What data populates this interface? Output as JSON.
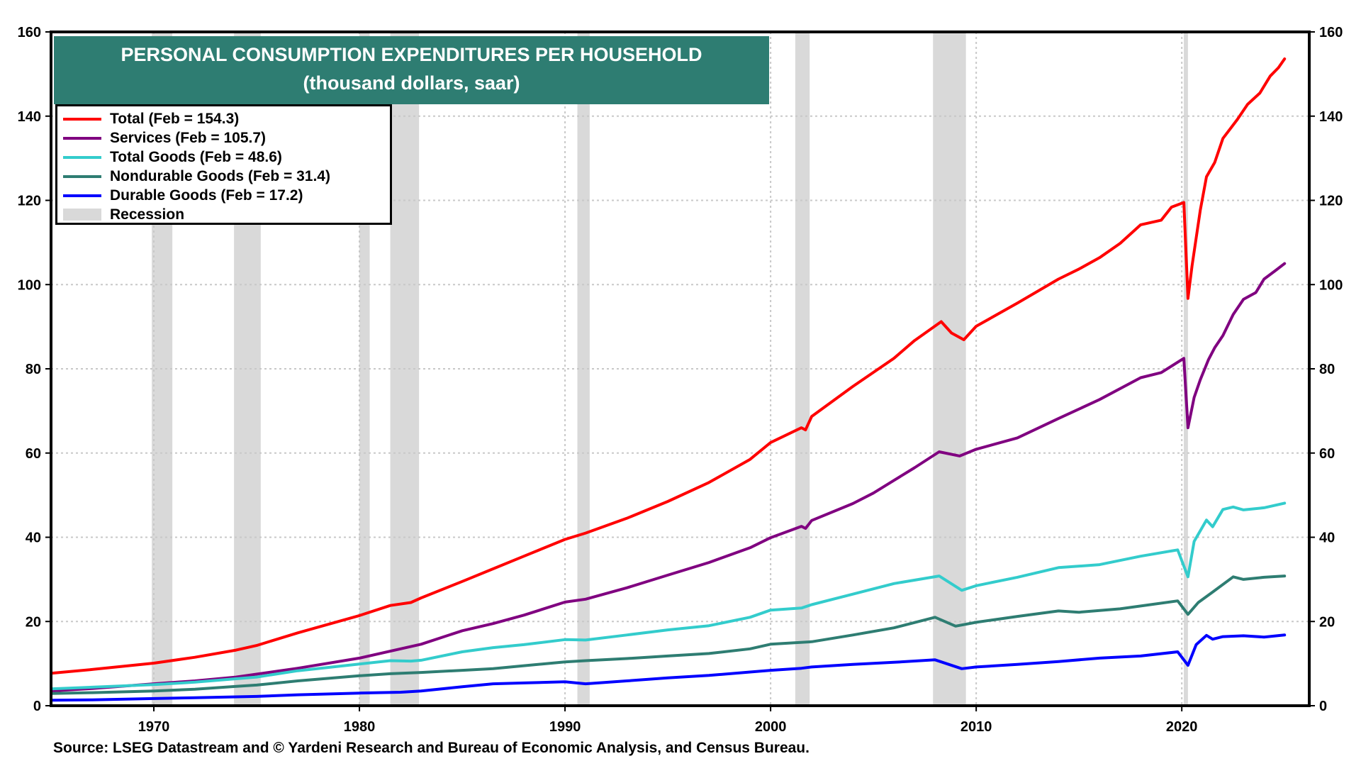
{
  "chart_data": {
    "type": "line",
    "title": "PERSONAL CONSUMPTION EXPENDITURES PER HOUSEHOLD",
    "subtitle": "(thousand dollars, saar)",
    "xlabel": "",
    "ylabel": "",
    "xlim": [
      1965.0,
      2026.2
    ],
    "ylim": [
      0,
      160
    ],
    "x_ticks": [
      1970,
      1980,
      1990,
      2000,
      2010,
      2020
    ],
    "y_ticks": [
      0,
      20,
      40,
      60,
      80,
      100,
      120,
      140,
      160
    ],
    "grid": true,
    "legend_position": "top-left",
    "recessions": [
      [
        1969.9,
        1970.9
      ],
      [
        1973.9,
        1975.2
      ],
      [
        1980.0,
        1980.5
      ],
      [
        1981.5,
        1982.9
      ],
      [
        1990.6,
        1991.2
      ],
      [
        2001.2,
        2001.9
      ],
      [
        2007.9,
        2009.5
      ],
      [
        2020.1,
        2020.3
      ]
    ],
    "series": [
      {
        "name": "Total (Feb = 154.3)",
        "color": "#ff0000",
        "points": [
          [
            1965,
            7.7
          ],
          [
            1967,
            8.6
          ],
          [
            1970,
            10.1
          ],
          [
            1972,
            11.5
          ],
          [
            1974,
            13.2
          ],
          [
            1975,
            14.3
          ],
          [
            1977,
            17.3
          ],
          [
            1980,
            21.4
          ],
          [
            1981.5,
            23.8
          ],
          [
            1982.5,
            24.5
          ],
          [
            1983,
            25.6
          ],
          [
            1985,
            29.5
          ],
          [
            1986.5,
            32.5
          ],
          [
            1988,
            35.5
          ],
          [
            1990,
            39.5
          ],
          [
            1991,
            41.0
          ],
          [
            1993,
            44.5
          ],
          [
            1995,
            48.5
          ],
          [
            1997,
            53.0
          ],
          [
            1999,
            58.5
          ],
          [
            2000,
            62.5
          ],
          [
            2001.5,
            66.0
          ],
          [
            2001.7,
            65.5
          ],
          [
            2002,
            68.7
          ],
          [
            2004,
            75.8
          ],
          [
            2006,
            82.5
          ],
          [
            2007,
            86.7
          ],
          [
            2008.3,
            91.2
          ],
          [
            2008.8,
            88.5
          ],
          [
            2009.4,
            86.9
          ],
          [
            2010,
            90.1
          ],
          [
            2012,
            95.6
          ],
          [
            2014,
            101.3
          ],
          [
            2015,
            103.7
          ],
          [
            2016,
            106.4
          ],
          [
            2017,
            109.8
          ],
          [
            2018,
            114.2
          ],
          [
            2019,
            115.3
          ],
          [
            2019.5,
            118.4
          ],
          [
            2020.1,
            119.5
          ],
          [
            2020.3,
            96.7
          ],
          [
            2020.5,
            104.5
          ],
          [
            2020.9,
            117.7
          ],
          [
            2021.2,
            125.6
          ],
          [
            2021.6,
            129.0
          ],
          [
            2022,
            134.7
          ],
          [
            2022.7,
            139.2
          ],
          [
            2023.2,
            142.8
          ],
          [
            2023.8,
            145.5
          ],
          [
            2024.3,
            149.5
          ],
          [
            2024.7,
            151.5
          ],
          [
            2025.0,
            153.6
          ]
        ]
      },
      {
        "name": "Services (Feb = 105.7)",
        "color": "#800080",
        "points": [
          [
            1965,
            3.5
          ],
          [
            1967,
            4.1
          ],
          [
            1970,
            5.2
          ],
          [
            1972,
            5.9
          ],
          [
            1974,
            6.8
          ],
          [
            1975,
            7.5
          ],
          [
            1977,
            8.9
          ],
          [
            1980,
            11.3
          ],
          [
            1982,
            13.5
          ],
          [
            1983,
            14.6
          ],
          [
            1985,
            17.8
          ],
          [
            1986.5,
            19.5
          ],
          [
            1988,
            21.5
          ],
          [
            1990,
            24.6
          ],
          [
            1991,
            25.3
          ],
          [
            1993,
            28.0
          ],
          [
            1995,
            31.0
          ],
          [
            1997,
            34.0
          ],
          [
            1999,
            37.5
          ],
          [
            2000,
            39.9
          ],
          [
            2001.5,
            42.6
          ],
          [
            2001.7,
            42.1
          ],
          [
            2002,
            44.0
          ],
          [
            2004,
            48.0
          ],
          [
            2005,
            50.5
          ],
          [
            2006,
            53.5
          ],
          [
            2007,
            56.5
          ],
          [
            2008.2,
            60.3
          ],
          [
            2009.2,
            59.3
          ],
          [
            2010,
            60.9
          ],
          [
            2012,
            63.6
          ],
          [
            2014,
            68.2
          ],
          [
            2016,
            72.7
          ],
          [
            2018,
            77.9
          ],
          [
            2019,
            79.1
          ],
          [
            2020.1,
            82.5
          ],
          [
            2020.3,
            66.0
          ],
          [
            2020.6,
            73.2
          ],
          [
            2020.9,
            77.4
          ],
          [
            2021.3,
            82.2
          ],
          [
            2021.6,
            85.0
          ],
          [
            2022,
            87.9
          ],
          [
            2022.5,
            92.9
          ],
          [
            2023,
            96.5
          ],
          [
            2023.6,
            98.1
          ],
          [
            2024,
            101.3
          ],
          [
            2024.6,
            103.5
          ],
          [
            2025.0,
            105.0
          ]
        ]
      },
      {
        "name": "Total Goods (Feb = 48.6)",
        "color": "#33cccc",
        "points": [
          [
            1965,
            4.0
          ],
          [
            1967,
            4.4
          ],
          [
            1970,
            5.0
          ],
          [
            1972,
            5.6
          ],
          [
            1974,
            6.4
          ],
          [
            1975,
            6.8
          ],
          [
            1977,
            8.3
          ],
          [
            1980,
            9.9
          ],
          [
            1981.5,
            10.7
          ],
          [
            1982.5,
            10.6
          ],
          [
            1983,
            10.8
          ],
          [
            1985,
            12.8
          ],
          [
            1986.5,
            13.8
          ],
          [
            1988,
            14.5
          ],
          [
            1990,
            15.7
          ],
          [
            1991,
            15.6
          ],
          [
            1993,
            16.8
          ],
          [
            1995,
            18.0
          ],
          [
            1997,
            19.0
          ],
          [
            1999,
            21.0
          ],
          [
            2000,
            22.7
          ],
          [
            2001.5,
            23.2
          ],
          [
            2002,
            24.0
          ],
          [
            2004,
            26.5
          ],
          [
            2006,
            29.0
          ],
          [
            2008.2,
            30.8
          ],
          [
            2009.3,
            27.4
          ],
          [
            2010,
            28.5
          ],
          [
            2012,
            30.5
          ],
          [
            2014,
            32.8
          ],
          [
            2016,
            33.5
          ],
          [
            2018,
            35.5
          ],
          [
            2019.8,
            37.0
          ],
          [
            2020.3,
            30.6
          ],
          [
            2020.6,
            39.0
          ],
          [
            2021.2,
            44.1
          ],
          [
            2021.5,
            42.5
          ],
          [
            2022,
            46.6
          ],
          [
            2022.5,
            47.2
          ],
          [
            2023,
            46.5
          ],
          [
            2024,
            47.0
          ],
          [
            2025.0,
            48.1
          ]
        ]
      },
      {
        "name": "Nondurable Goods (Feb = 31.4)",
        "color": "#2e7d72",
        "points": [
          [
            1965,
            2.9
          ],
          [
            1967,
            3.1
          ],
          [
            1970,
            3.5
          ],
          [
            1972,
            3.9
          ],
          [
            1974,
            4.6
          ],
          [
            1975,
            4.9
          ],
          [
            1977,
            5.9
          ],
          [
            1980,
            7.1
          ],
          [
            1981.5,
            7.6
          ],
          [
            1983,
            7.9
          ],
          [
            1985,
            8.4
          ],
          [
            1986.5,
            8.8
          ],
          [
            1988,
            9.5
          ],
          [
            1990,
            10.4
          ],
          [
            1991,
            10.7
          ],
          [
            1993,
            11.2
          ],
          [
            1995,
            11.8
          ],
          [
            1997,
            12.4
          ],
          [
            1999,
            13.5
          ],
          [
            2000,
            14.6
          ],
          [
            2002,
            15.2
          ],
          [
            2004,
            16.8
          ],
          [
            2006,
            18.5
          ],
          [
            2008,
            21.0
          ],
          [
            2009,
            18.9
          ],
          [
            2010,
            19.8
          ],
          [
            2012,
            21.2
          ],
          [
            2014,
            22.5
          ],
          [
            2015,
            22.2
          ],
          [
            2017,
            23.0
          ],
          [
            2019.8,
            24.9
          ],
          [
            2020.3,
            21.7
          ],
          [
            2020.8,
            24.5
          ],
          [
            2021.5,
            27.0
          ],
          [
            2022.5,
            30.6
          ],
          [
            2023,
            30.0
          ],
          [
            2024,
            30.5
          ],
          [
            2025.0,
            30.8
          ]
        ]
      },
      {
        "name": "Durable Goods (Feb = 17.2)",
        "color": "#0000ff",
        "points": [
          [
            1965,
            1.3
          ],
          [
            1967,
            1.4
          ],
          [
            1970,
            1.7
          ],
          [
            1972,
            1.9
          ],
          [
            1974,
            2.1
          ],
          [
            1975,
            2.2
          ],
          [
            1977,
            2.6
          ],
          [
            1980,
            3.0
          ],
          [
            1982,
            3.2
          ],
          [
            1983,
            3.5
          ],
          [
            1985,
            4.5
          ],
          [
            1986.5,
            5.2
          ],
          [
            1988,
            5.4
          ],
          [
            1990,
            5.7
          ],
          [
            1991,
            5.2
          ],
          [
            1993,
            5.9
          ],
          [
            1995,
            6.6
          ],
          [
            1997,
            7.2
          ],
          [
            1999,
            8.0
          ],
          [
            2000,
            8.4
          ],
          [
            2001.5,
            8.9
          ],
          [
            2002,
            9.2
          ],
          [
            2004,
            9.8
          ],
          [
            2006,
            10.3
          ],
          [
            2008,
            10.9
          ],
          [
            2009.3,
            8.8
          ],
          [
            2010,
            9.2
          ],
          [
            2012,
            9.8
          ],
          [
            2014,
            10.5
          ],
          [
            2016,
            11.3
          ],
          [
            2018,
            11.8
          ],
          [
            2019.8,
            12.8
          ],
          [
            2020.3,
            9.6
          ],
          [
            2020.7,
            14.5
          ],
          [
            2021.2,
            16.7
          ],
          [
            2021.5,
            15.8
          ],
          [
            2022,
            16.4
          ],
          [
            2023,
            16.6
          ],
          [
            2024,
            16.3
          ],
          [
            2025.0,
            16.8
          ]
        ]
      }
    ],
    "legend": [
      {
        "label": "Total (Feb = 154.3)",
        "color": "#ff0000",
        "kind": "line"
      },
      {
        "label": "Services (Feb = 105.7)",
        "color": "#800080",
        "kind": "line"
      },
      {
        "label": "Total Goods (Feb = 48.6)",
        "color": "#33cccc",
        "kind": "line"
      },
      {
        "label": "Nondurable Goods (Feb = 31.4)",
        "color": "#2e7d72",
        "kind": "line"
      },
      {
        "label": "Durable Goods (Feb = 17.2)",
        "color": "#0000ff",
        "kind": "line"
      },
      {
        "label": "Recession",
        "color": "#d9d9d9",
        "kind": "box"
      }
    ],
    "source": "Source: LSEG Datastream and © Yardeni Research and Bureau of Economic Analysis, and Census Bureau."
  },
  "colors": {
    "title_bg": "#2e7d72",
    "recession": "#d9d9d9",
    "grid": "#c8c8c8"
  }
}
